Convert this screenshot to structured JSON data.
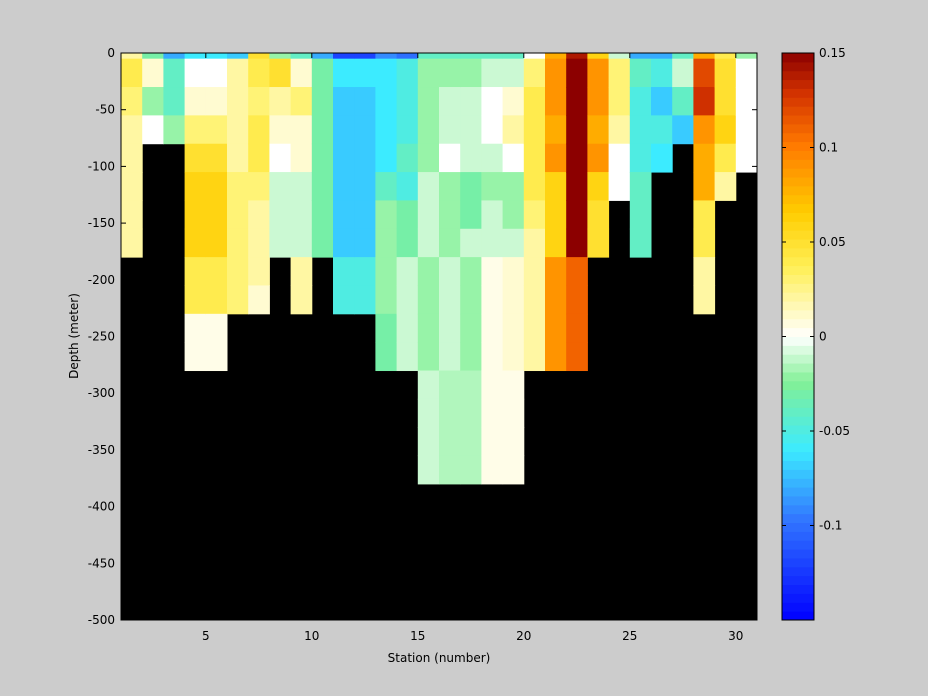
{
  "chart_data": {
    "type": "heatmap",
    "title": "",
    "xlabel": "Station (number)",
    "ylabel": "Depth (meter)",
    "xlim": [
      1,
      31
    ],
    "ylim": [
      -500,
      0
    ],
    "xticks": [
      5,
      10,
      15,
      20,
      25,
      30
    ],
    "yticks": [
      0,
      -50,
      -100,
      -150,
      -200,
      -250,
      -300,
      -350,
      -400,
      -450,
      -500
    ],
    "cell_width_stations": 1,
    "cell_depth_m": 25,
    "surface_row_depth_m": 5,
    "background_color": "#000000",
    "colorbar": {
      "min": -0.15,
      "max": 0.15,
      "ticks": [
        -0.1,
        -0.05,
        0,
        0.05,
        0.1,
        0.15
      ],
      "tick_labels": [
        "-0.1",
        "-0.05",
        "0",
        "0.05",
        "0.1",
        "0.15"
      ],
      "colormap": "jet-white"
    },
    "stations": [
      {
        "x": 1.5,
        "max_depth": 200,
        "values": [
          0.02,
          0.04,
          0.03,
          0.02,
          0.02,
          0.02,
          0.02,
          0.02
        ]
      },
      {
        "x": 2.5,
        "max_depth": 100,
        "values": [
          -0.03,
          0.01,
          -0.02,
          0.0
        ]
      },
      {
        "x": 3.5,
        "max_depth": 100,
        "values": [
          -0.08,
          -0.04,
          -0.04,
          -0.02
        ]
      },
      {
        "x": 4.5,
        "max_depth": 300,
        "values": [
          -0.06,
          0.0,
          0.01,
          0.03,
          0.05,
          0.06,
          0.06,
          0.06,
          0.04,
          0.04,
          0.005,
          0.005
        ]
      },
      {
        "x": 5.5,
        "max_depth": 300,
        "values": [
          -0.06,
          0.0,
          0.01,
          0.03,
          0.05,
          0.06,
          0.06,
          0.06,
          0.04,
          0.04,
          0.005,
          0.005
        ]
      },
      {
        "x": 6.5,
        "max_depth": 250,
        "values": [
          -0.07,
          0.02,
          0.02,
          0.02,
          0.02,
          0.03,
          0.03,
          0.03,
          0.03,
          0.03
        ]
      },
      {
        "x": 7.5,
        "max_depth": 250,
        "values": [
          0.05,
          0.04,
          0.03,
          0.04,
          0.04,
          0.03,
          0.02,
          0.02,
          0.02,
          0.01
        ]
      },
      {
        "x": 8.5,
        "max_depth": 200,
        "values": [
          -0.02,
          0.05,
          0.02,
          0.01,
          0.0,
          -0.01,
          -0.01,
          -0.01
        ]
      },
      {
        "x": 9.5,
        "max_depth": 250,
        "values": [
          -0.04,
          0.01,
          0.03,
          0.01,
          0.01,
          -0.01,
          -0.01,
          -0.01,
          0.02,
          0.02
        ]
      },
      {
        "x": 10.5,
        "max_depth": 200,
        "values": [
          -0.08,
          -0.03,
          -0.03,
          -0.03,
          -0.03,
          -0.03,
          -0.03,
          -0.03
        ]
      },
      {
        "x": 11.5,
        "max_depth": 250,
        "values": [
          -0.12,
          -0.06,
          -0.07,
          -0.07,
          -0.07,
          -0.07,
          -0.07,
          -0.07,
          -0.05,
          -0.05
        ]
      },
      {
        "x": 12.5,
        "max_depth": 250,
        "values": [
          -0.12,
          -0.06,
          -0.07,
          -0.07,
          -0.07,
          -0.07,
          -0.07,
          -0.07,
          -0.05,
          -0.05
        ]
      },
      {
        "x": 13.5,
        "max_depth": 300,
        "values": [
          -0.09,
          -0.06,
          -0.06,
          -0.06,
          -0.06,
          -0.04,
          -0.02,
          -0.02,
          -0.02,
          -0.02,
          -0.03,
          -0.03
        ]
      },
      {
        "x": 14.5,
        "max_depth": 300,
        "values": [
          -0.1,
          -0.05,
          -0.05,
          -0.05,
          -0.04,
          -0.05,
          -0.03,
          -0.03,
          -0.01,
          -0.01,
          -0.01,
          -0.01
        ]
      },
      {
        "x": 15.5,
        "max_depth": 400,
        "values": [
          -0.04,
          -0.02,
          -0.02,
          -0.02,
          -0.02,
          -0.01,
          -0.01,
          -0.01,
          -0.02,
          -0.02,
          -0.02,
          -0.02,
          -0.01,
          -0.01,
          -0.01,
          -0.01
        ]
      },
      {
        "x": 16.5,
        "max_depth": 400,
        "values": [
          -0.04,
          -0.02,
          -0.01,
          -0.01,
          0.0,
          -0.02,
          -0.02,
          -0.02,
          -0.01,
          -0.01,
          -0.01,
          -0.01,
          -0.015,
          -0.015,
          -0.015,
          -0.015
        ]
      },
      {
        "x": 17.5,
        "max_depth": 400,
        "values": [
          -0.04,
          -0.02,
          -0.01,
          -0.01,
          -0.01,
          -0.03,
          -0.03,
          -0.01,
          -0.02,
          -0.02,
          -0.02,
          -0.02,
          -0.015,
          -0.015,
          -0.015,
          -0.015
        ]
      },
      {
        "x": 18.5,
        "max_depth": 400,
        "values": [
          -0.04,
          -0.01,
          0.0,
          0.0,
          -0.01,
          -0.02,
          -0.01,
          -0.01,
          0.005,
          0.005,
          0.005,
          0.005,
          0.005,
          0.005,
          0.005,
          0.005
        ]
      },
      {
        "x": 19.5,
        "max_depth": 400,
        "values": [
          -0.04,
          -0.01,
          0.01,
          0.02,
          0.0,
          -0.02,
          -0.02,
          -0.01,
          0.01,
          0.01,
          0.01,
          0.01,
          0.005,
          0.005,
          0.005,
          0.005
        ]
      },
      {
        "x": 20.5,
        "max_depth": 300,
        "values": [
          0.0,
          0.03,
          0.04,
          0.04,
          0.04,
          0.04,
          0.03,
          0.02,
          0.02,
          0.02,
          0.02,
          0.02
        ]
      },
      {
        "x": 21.5,
        "max_depth": 300,
        "values": [
          0.08,
          0.09,
          0.09,
          0.08,
          0.09,
          0.06,
          0.06,
          0.06,
          0.09,
          0.09,
          0.09,
          0.09
        ]
      },
      {
        "x": 22.5,
        "max_depth": 300,
        "values": [
          0.14,
          0.15,
          0.15,
          0.15,
          0.15,
          0.15,
          0.15,
          0.15,
          0.11,
          0.11,
          0.11,
          0.11
        ]
      },
      {
        "x": 23.5,
        "max_depth": 200,
        "values": [
          0.06,
          0.09,
          0.09,
          0.08,
          0.09,
          0.06,
          0.05,
          0.05
        ]
      },
      {
        "x": 24.5,
        "max_depth": 150,
        "values": [
          -0.01,
          0.03,
          0.03,
          0.02,
          0.0,
          0.0
        ]
      },
      {
        "x": 25.5,
        "max_depth": 200,
        "values": [
          -0.08,
          -0.04,
          -0.05,
          -0.05,
          -0.05,
          -0.04,
          -0.04,
          -0.04
        ]
      },
      {
        "x": 26.5,
        "max_depth": 125,
        "values": [
          -0.08,
          -0.05,
          -0.07,
          -0.05,
          -0.06
        ]
      },
      {
        "x": 27.5,
        "max_depth": 100,
        "values": [
          -0.04,
          -0.01,
          -0.04,
          -0.07
        ]
      },
      {
        "x": 28.5,
        "max_depth": 250,
        "values": [
          0.08,
          0.12,
          0.13,
          0.09,
          0.08,
          0.08,
          0.04,
          0.04,
          0.02,
          0.02
        ]
      },
      {
        "x": 29.5,
        "max_depth": 150,
        "values": [
          0.04,
          0.05,
          0.05,
          0.06,
          0.04,
          0.02
        ]
      },
      {
        "x": 30.5,
        "max_depth": 125,
        "values": [
          -0.02,
          0.0,
          0.0,
          0.0,
          0.0
        ]
      }
    ]
  }
}
